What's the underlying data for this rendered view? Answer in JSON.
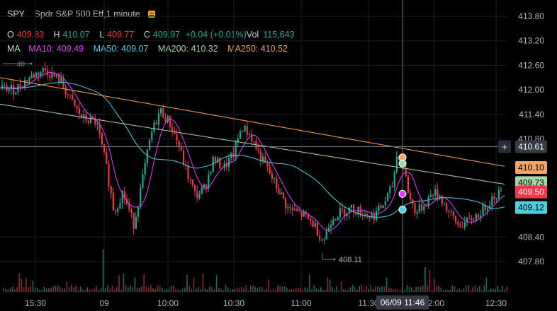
{
  "header": {
    "symbol": "SPY",
    "description": "Spdr S&P 500 Etf,1 minute",
    "ohlc": {
      "o_label": "O",
      "o": "409.83",
      "h_label": "H",
      "h": "410.07",
      "l_label": "L",
      "l": "409.77",
      "c_label": "C",
      "c": "409.97",
      "change": "+0.04 (+0.01%)",
      "vol_label": "Vol",
      "vol": "115,643"
    },
    "ma": {
      "label": "MA",
      "ma10": "MA10: 409.49",
      "ma50": "MA50: 409.07",
      "ma200": "MA200: 410.32",
      "ma250": "MA250: 410.52"
    }
  },
  "colors": {
    "up": "#22ab94",
    "down": "#f23645",
    "ma10": "#e040fb",
    "ma50": "#4dd0e1",
    "ma200": "#a5d6a7",
    "ma250": "#f4a460"
  },
  "price_axis": {
    "ticks": [
      "413.80",
      "413.20",
      "412.60",
      "412.00",
      "411.40",
      "410.80",
      "408.40",
      "407.80"
    ],
    "range": [
      407.6,
      414.0
    ]
  },
  "time_axis": {
    "ticks": [
      "15:30",
      "09",
      "10:00",
      "10:30",
      "11:00",
      "11:30",
      "12:00",
      "12:30"
    ]
  },
  "price_badges": {
    "crosshair": "410.61",
    "ma250": "410.10",
    "ma200": "409.73",
    "last": "409.50",
    "ma50": "409.12"
  },
  "crosshair_time": "06/09 11:46",
  "annotations": {
    "high_marker": "48",
    "low_marker": "408.11"
  },
  "toolbar": {
    "plus": "+"
  }
}
